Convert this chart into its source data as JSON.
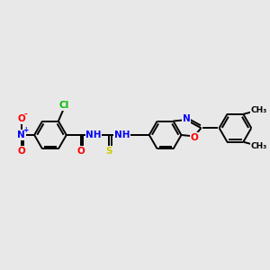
{
  "bg_color": "#e8e8e8",
  "bond_color": "#000000",
  "atoms": {
    "Cl": {
      "color": "#00bb00"
    },
    "N": {
      "color": "#0000ff"
    },
    "O": {
      "color": "#ff0000"
    },
    "S": {
      "color": "#cccc00"
    },
    "C": {
      "color": "#000000"
    }
  },
  "font_size": 7.5,
  "line_width": 1.4,
  "figsize": [
    3.0,
    3.0
  ],
  "dpi": 100,
  "xlim": [
    0,
    10
  ],
  "ylim": [
    2,
    8
  ]
}
